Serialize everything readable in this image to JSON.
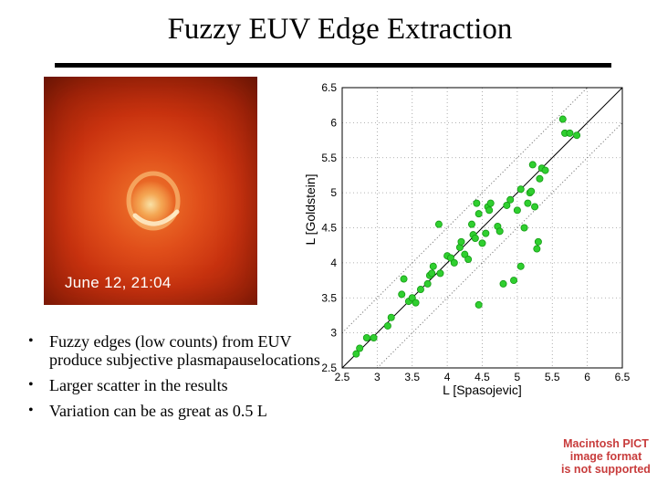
{
  "slide": {
    "title": "Fuzzy EUV Edge Extraction"
  },
  "image": {
    "caption": "June 12,  21:04"
  },
  "bullets": [
    "Fuzzy edges (low counts) from EUV produce subjective plasmapauselocations",
    "Larger scatter in the results",
    "Variation can be as great as 0.5 L"
  ],
  "pict_note": [
    "Macintosh PICT",
    "image format",
    "is not supported"
  ],
  "chart_data": {
    "type": "scatter",
    "title": "",
    "xlabel": "L   [Spasojevic]",
    "ylabel": "L   [Goldstein]",
    "xlim": [
      2.5,
      6.5
    ],
    "ylim": [
      2.5,
      6.5
    ],
    "xticks": [
      "2.5",
      "3",
      "3.5",
      "4",
      "4.5",
      "5",
      "5.5",
      "6",
      "6.5"
    ],
    "yticks": [
      "2.5",
      "3",
      "3.5",
      "4",
      "4.5",
      "5",
      "5.5",
      "6",
      "6.5"
    ],
    "grid": true,
    "point_color": "#2fcf2f",
    "reference_lines": [
      {
        "kind": "y=x",
        "style": "solid"
      },
      {
        "kind": "y=x+0.5",
        "style": "dotted"
      },
      {
        "kind": "y=x-0.5",
        "style": "dotted"
      }
    ],
    "points": [
      [
        2.7,
        2.7
      ],
      [
        2.75,
        2.78
      ],
      [
        2.85,
        2.93
      ],
      [
        2.95,
        2.93
      ],
      [
        3.15,
        3.1
      ],
      [
        3.2,
        3.22
      ],
      [
        3.35,
        3.55
      ],
      [
        3.38,
        3.77
      ],
      [
        3.45,
        3.45
      ],
      [
        3.5,
        3.5
      ],
      [
        3.55,
        3.43
      ],
      [
        3.62,
        3.62
      ],
      [
        3.72,
        3.7
      ],
      [
        3.75,
        3.82
      ],
      [
        3.78,
        3.85
      ],
      [
        3.8,
        3.95
      ],
      [
        3.88,
        4.55
      ],
      [
        3.9,
        3.85
      ],
      [
        4.0,
        4.1
      ],
      [
        4.05,
        4.07
      ],
      [
        4.1,
        4.0
      ],
      [
        4.18,
        4.22
      ],
      [
        4.2,
        4.3
      ],
      [
        4.25,
        4.12
      ],
      [
        4.3,
        4.05
      ],
      [
        4.35,
        4.55
      ],
      [
        4.37,
        4.4
      ],
      [
        4.4,
        4.35
      ],
      [
        4.42,
        4.85
      ],
      [
        4.45,
        4.7
      ],
      [
        4.45,
        3.4
      ],
      [
        4.5,
        4.28
      ],
      [
        4.55,
        4.42
      ],
      [
        4.58,
        4.8
      ],
      [
        4.6,
        4.75
      ],
      [
        4.62,
        4.85
      ],
      [
        4.72,
        4.52
      ],
      [
        4.75,
        4.45
      ],
      [
        4.8,
        3.7
      ],
      [
        4.85,
        4.82
      ],
      [
        4.9,
        4.9
      ],
      [
        4.95,
        3.75
      ],
      [
        5.0,
        4.75
      ],
      [
        5.05,
        5.05
      ],
      [
        5.05,
        3.95
      ],
      [
        5.1,
        4.5
      ],
      [
        5.15,
        4.85
      ],
      [
        5.18,
        5.0
      ],
      [
        5.2,
        5.02
      ],
      [
        5.22,
        5.4
      ],
      [
        5.25,
        4.8
      ],
      [
        5.28,
        4.2
      ],
      [
        5.3,
        4.3
      ],
      [
        5.32,
        5.2
      ],
      [
        5.35,
        5.35
      ],
      [
        5.4,
        5.32
      ],
      [
        5.65,
        6.05
      ],
      [
        5.68,
        5.85
      ],
      [
        5.75,
        5.85
      ],
      [
        5.85,
        5.82
      ]
    ]
  }
}
